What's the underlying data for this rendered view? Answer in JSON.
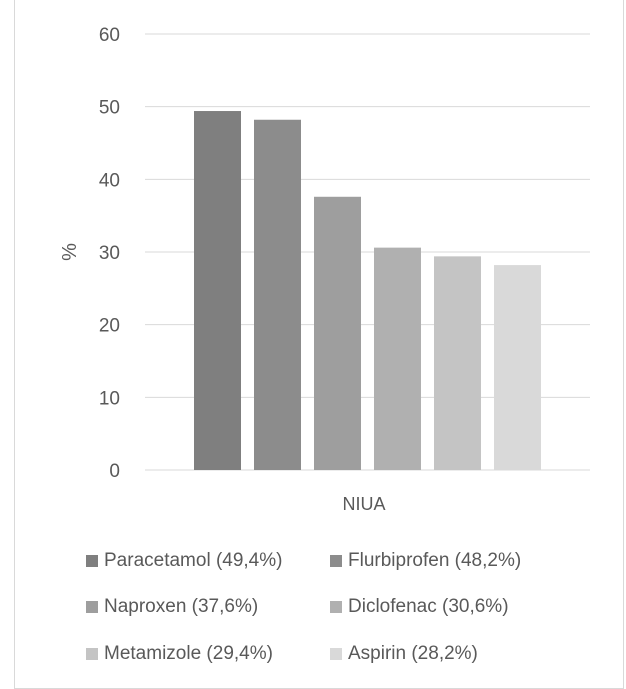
{
  "chart_data": {
    "type": "bar",
    "ylabel": "%",
    "xlabel": "NIUA",
    "ylim": [
      0,
      60
    ],
    "yticks": [
      0,
      10,
      20,
      30,
      40,
      50,
      60
    ],
    "grid": true,
    "legend_placement": "bottom",
    "series": [
      {
        "name": "Paracetamol (49,4%)",
        "value": 49.4,
        "color": "#7f7f7f"
      },
      {
        "name": "Flurbiprofen (48,2%)",
        "value": 48.2,
        "color": "#8c8c8c"
      },
      {
        "name": "Naproxen (37,6%)",
        "value": 37.6,
        "color": "#9e9e9e"
      },
      {
        "name": "Diclofenac (30,6%)",
        "value": 30.6,
        "color": "#b0b0b0"
      },
      {
        "name": "Metamizole (29,4%)",
        "value": 29.4,
        "color": "#c4c4c4"
      },
      {
        "name": "Aspirin (28,2%)",
        "value": 28.2,
        "color": "#d9d9d9"
      }
    ]
  }
}
